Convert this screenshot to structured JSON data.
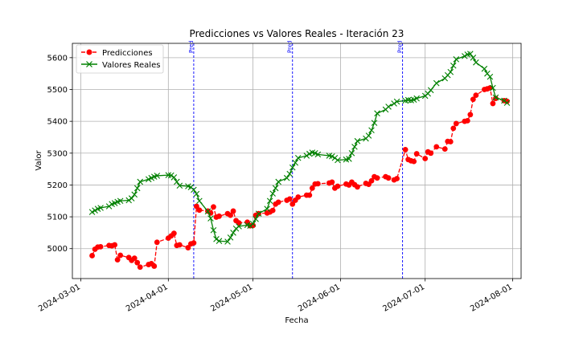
{
  "chart_data": {
    "type": "line",
    "title": "Predicciones vs Valores Reales - Iteración 23",
    "xlabel": "Fecha",
    "ylabel": "Valor",
    "xlim": [
      "2024-02-27",
      "2024-08-04"
    ],
    "ylim": [
      4906,
      5645
    ],
    "x_ticks": [
      "2024-03-01",
      "2024-04-01",
      "2024-05-01",
      "2024-06-01",
      "2024-07-01",
      "2024-08-01"
    ],
    "y_ticks": [
      5000,
      5100,
      5200,
      5300,
      5400,
      5500,
      5600
    ],
    "grid": true,
    "legend_position": "top-left",
    "colors": {
      "predicciones": "#ff0000",
      "reales": "#008000",
      "vlines": "#0000ff"
    },
    "vlines": [
      {
        "date": "2024-04-10",
        "label": "Pred"
      },
      {
        "date": "2024-05-15",
        "label": "Pred"
      },
      {
        "date": "2024-06-23",
        "label": "Pred"
      }
    ],
    "series": [
      {
        "name": "Predicciones",
        "marker": "circle",
        "linestyle": "dashed",
        "color": "#ff0000",
        "points": [
          [
            "2024-03-05",
            4978
          ],
          [
            "2024-03-06",
            4998
          ],
          [
            "2024-03-07",
            5005
          ],
          [
            "2024-03-08",
            5006
          ],
          [
            "2024-03-11",
            5010
          ],
          [
            "2024-03-12",
            5009
          ],
          [
            "2024-03-13",
            5012
          ],
          [
            "2024-03-14",
            4965
          ],
          [
            "2024-03-15",
            4979
          ],
          [
            "2024-03-18",
            4972
          ],
          [
            "2024-03-19",
            4963
          ],
          [
            "2024-03-20",
            4970
          ],
          [
            "2024-03-21",
            4956
          ],
          [
            "2024-03-22",
            4942
          ],
          [
            "2024-03-25",
            4950
          ],
          [
            "2024-03-26",
            4953
          ],
          [
            "2024-03-27",
            4945
          ],
          [
            "2024-03-28",
            5020
          ],
          [
            "2024-04-01",
            5033
          ],
          [
            "2024-04-02",
            5040
          ],
          [
            "2024-04-03",
            5048
          ],
          [
            "2024-04-04",
            5010
          ],
          [
            "2024-04-05",
            5012
          ],
          [
            "2024-04-08",
            5003
          ],
          [
            "2024-04-09",
            5015
          ],
          [
            "2024-04-10",
            5018
          ],
          [
            "2024-04-11",
            5133
          ],
          [
            "2024-04-12",
            5121
          ],
          [
            "2024-04-15",
            5118
          ],
          [
            "2024-04-16",
            5112
          ],
          [
            "2024-04-17",
            5131
          ],
          [
            "2024-04-18",
            5099
          ],
          [
            "2024-04-19",
            5102
          ],
          [
            "2024-04-22",
            5110
          ],
          [
            "2024-04-23",
            5105
          ],
          [
            "2024-04-24",
            5118
          ],
          [
            "2024-04-25",
            5088
          ],
          [
            "2024-04-26",
            5081
          ],
          [
            "2024-04-29",
            5083
          ],
          [
            "2024-04-30",
            5072
          ],
          [
            "2024-05-01",
            5073
          ],
          [
            "2024-05-02",
            5105
          ],
          [
            "2024-05-03",
            5110
          ],
          [
            "2024-05-06",
            5112
          ],
          [
            "2024-05-07",
            5115
          ],
          [
            "2024-05-08",
            5120
          ],
          [
            "2024-05-09",
            5140
          ],
          [
            "2024-05-10",
            5146
          ],
          [
            "2024-05-13",
            5152
          ],
          [
            "2024-05-14",
            5156
          ],
          [
            "2024-05-15",
            5140
          ],
          [
            "2024-05-16",
            5152
          ],
          [
            "2024-05-17",
            5162
          ],
          [
            "2024-05-20",
            5168
          ],
          [
            "2024-05-21",
            5168
          ],
          [
            "2024-05-22",
            5190
          ],
          [
            "2024-05-23",
            5203
          ],
          [
            "2024-05-24",
            5204
          ],
          [
            "2024-05-28",
            5206
          ],
          [
            "2024-05-29",
            5209
          ],
          [
            "2024-05-30",
            5190
          ],
          [
            "2024-05-31",
            5196
          ],
          [
            "2024-06-03",
            5203
          ],
          [
            "2024-06-04",
            5200
          ],
          [
            "2024-06-05",
            5209
          ],
          [
            "2024-06-06",
            5201
          ],
          [
            "2024-06-07",
            5194
          ],
          [
            "2024-06-10",
            5205
          ],
          [
            "2024-06-11",
            5202
          ],
          [
            "2024-06-12",
            5213
          ],
          [
            "2024-06-13",
            5226
          ],
          [
            "2024-06-14",
            5222
          ],
          [
            "2024-06-17",
            5226
          ],
          [
            "2024-06-18",
            5222
          ],
          [
            "2024-06-20",
            5216
          ],
          [
            "2024-06-21",
            5220
          ],
          [
            "2024-06-24",
            5311
          ],
          [
            "2024-06-25",
            5280
          ],
          [
            "2024-06-26",
            5276
          ],
          [
            "2024-06-27",
            5274
          ],
          [
            "2024-06-28",
            5298
          ],
          [
            "2024-07-01",
            5283
          ],
          [
            "2024-07-02",
            5304
          ],
          [
            "2024-07-03",
            5300
          ],
          [
            "2024-07-05",
            5320
          ],
          [
            "2024-07-08",
            5313
          ],
          [
            "2024-07-09",
            5337
          ],
          [
            "2024-07-10",
            5336
          ],
          [
            "2024-07-11",
            5378
          ],
          [
            "2024-07-12",
            5393
          ],
          [
            "2024-07-15",
            5400
          ],
          [
            "2024-07-16",
            5402
          ],
          [
            "2024-07-17",
            5421
          ],
          [
            "2024-07-18",
            5469
          ],
          [
            "2024-07-19",
            5482
          ],
          [
            "2024-07-22",
            5500
          ],
          [
            "2024-07-23",
            5502
          ],
          [
            "2024-07-24",
            5505
          ],
          [
            "2024-07-25",
            5456
          ],
          [
            "2024-07-26",
            5472
          ],
          [
            "2024-07-29",
            5465
          ],
          [
            "2024-07-30",
            5463
          ]
        ]
      },
      {
        "name": "Valores Reales",
        "marker": "x",
        "linestyle": "solid",
        "color": "#008000",
        "points": [
          [
            "2024-03-05",
            5115
          ],
          [
            "2024-03-06",
            5120
          ],
          [
            "2024-03-07",
            5125
          ],
          [
            "2024-03-08",
            5128
          ],
          [
            "2024-03-11",
            5133
          ],
          [
            "2024-03-12",
            5140
          ],
          [
            "2024-03-13",
            5143
          ],
          [
            "2024-03-14",
            5147
          ],
          [
            "2024-03-15",
            5150
          ],
          [
            "2024-03-18",
            5152
          ],
          [
            "2024-03-19",
            5158
          ],
          [
            "2024-03-20",
            5170
          ],
          [
            "2024-03-21",
            5190
          ],
          [
            "2024-03-22",
            5210
          ],
          [
            "2024-03-25",
            5218
          ],
          [
            "2024-03-26",
            5222
          ],
          [
            "2024-03-27",
            5226
          ],
          [
            "2024-03-28",
            5229
          ],
          [
            "2024-04-01",
            5231
          ],
          [
            "2024-04-02",
            5230
          ],
          [
            "2024-04-03",
            5224
          ],
          [
            "2024-04-04",
            5210
          ],
          [
            "2024-04-05",
            5198
          ],
          [
            "2024-04-08",
            5196
          ],
          [
            "2024-04-09",
            5193
          ],
          [
            "2024-04-10",
            5185
          ],
          [
            "2024-04-11",
            5172
          ],
          [
            "2024-04-12",
            5150
          ],
          [
            "2024-04-15",
            5117
          ],
          [
            "2024-04-16",
            5095
          ],
          [
            "2024-04-17",
            5058
          ],
          [
            "2024-04-18",
            5030
          ],
          [
            "2024-04-19",
            5024
          ],
          [
            "2024-04-22",
            5022
          ],
          [
            "2024-04-23",
            5035
          ],
          [
            "2024-04-24",
            5050
          ],
          [
            "2024-04-25",
            5063
          ],
          [
            "2024-04-26",
            5070
          ],
          [
            "2024-04-29",
            5074
          ],
          [
            "2024-04-30",
            5072
          ],
          [
            "2024-05-01",
            5078
          ],
          [
            "2024-05-02",
            5093
          ],
          [
            "2024-05-03",
            5110
          ],
          [
            "2024-05-06",
            5125
          ],
          [
            "2024-05-07",
            5150
          ],
          [
            "2024-05-08",
            5173
          ],
          [
            "2024-05-09",
            5190
          ],
          [
            "2024-05-10",
            5210
          ],
          [
            "2024-05-13",
            5222
          ],
          [
            "2024-05-14",
            5235
          ],
          [
            "2024-05-15",
            5255
          ],
          [
            "2024-05-16",
            5270
          ],
          [
            "2024-05-17",
            5285
          ],
          [
            "2024-05-20",
            5292
          ],
          [
            "2024-05-21",
            5298
          ],
          [
            "2024-05-22",
            5302
          ],
          [
            "2024-05-23",
            5300
          ],
          [
            "2024-05-24",
            5296
          ],
          [
            "2024-05-28",
            5292
          ],
          [
            "2024-05-29",
            5290
          ],
          [
            "2024-05-30",
            5285
          ],
          [
            "2024-05-31",
            5278
          ],
          [
            "2024-06-03",
            5280
          ],
          [
            "2024-06-04",
            5282
          ],
          [
            "2024-06-05",
            5300
          ],
          [
            "2024-06-06",
            5320
          ],
          [
            "2024-06-07",
            5338
          ],
          [
            "2024-06-10",
            5346
          ],
          [
            "2024-06-11",
            5355
          ],
          [
            "2024-06-12",
            5372
          ],
          [
            "2024-06-13",
            5395
          ],
          [
            "2024-06-14",
            5425
          ],
          [
            "2024-06-17",
            5437
          ],
          [
            "2024-06-18",
            5446
          ],
          [
            "2024-06-20",
            5456
          ],
          [
            "2024-06-21",
            5462
          ],
          [
            "2024-06-24",
            5465
          ],
          [
            "2024-06-25",
            5467
          ],
          [
            "2024-06-26",
            5466
          ],
          [
            "2024-06-27",
            5468
          ],
          [
            "2024-06-28",
            5472
          ],
          [
            "2024-07-01",
            5480
          ],
          [
            "2024-07-02",
            5487
          ],
          [
            "2024-07-03",
            5498
          ],
          [
            "2024-07-05",
            5520
          ],
          [
            "2024-07-08",
            5535
          ],
          [
            "2024-07-09",
            5545
          ],
          [
            "2024-07-10",
            5555
          ],
          [
            "2024-07-11",
            5575
          ],
          [
            "2024-07-12",
            5595
          ],
          [
            "2024-07-15",
            5605
          ],
          [
            "2024-07-16",
            5610
          ],
          [
            "2024-07-17",
            5612
          ],
          [
            "2024-07-18",
            5600
          ],
          [
            "2024-07-19",
            5585
          ],
          [
            "2024-07-22",
            5565
          ],
          [
            "2024-07-23",
            5550
          ],
          [
            "2024-07-24",
            5540
          ],
          [
            "2024-07-25",
            5505
          ],
          [
            "2024-07-26",
            5475
          ],
          [
            "2024-07-29",
            5465
          ],
          [
            "2024-07-30",
            5458
          ]
        ]
      }
    ]
  }
}
